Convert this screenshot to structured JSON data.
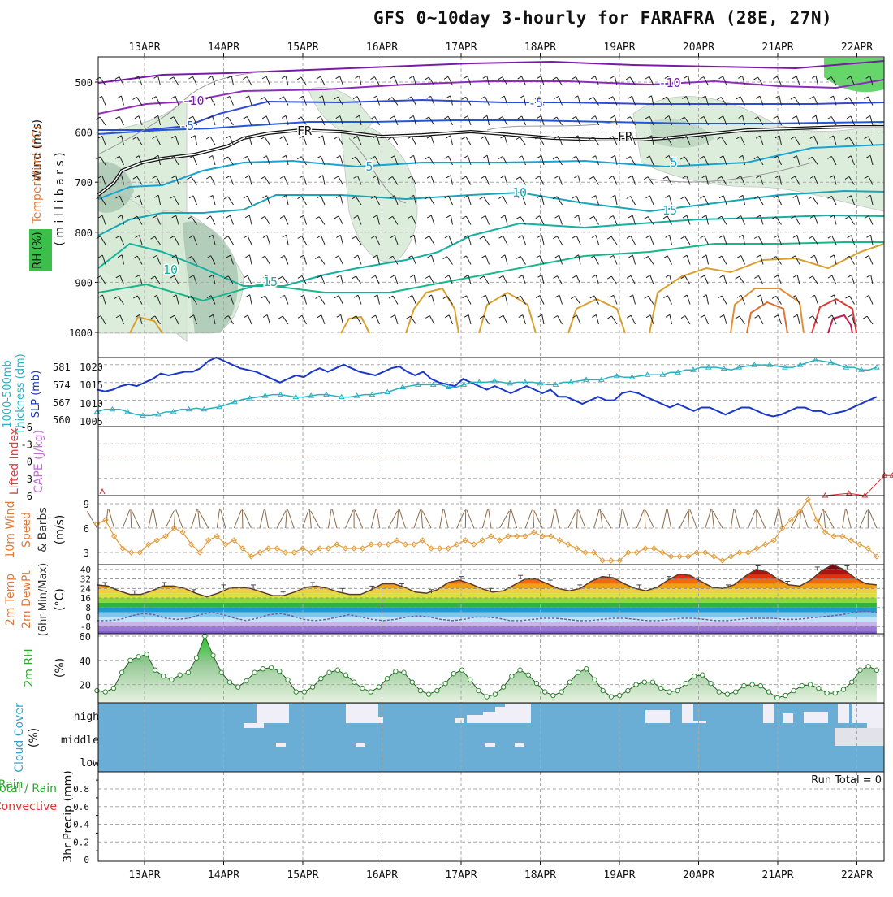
{
  "title": "GFS 0~10day 3-hourly for FARAFRA (28E, 27N)",
  "date_labels": [
    "13APR",
    "14APR",
    "15APR",
    "16APR",
    "17APR",
    "18APR",
    "19APR",
    "20APR",
    "21APR",
    "22APR"
  ],
  "panels": {
    "upper": {
      "ylabels": [
        "RH (%)",
        "Temperature (°C)",
        "Wind (m/s)",
        "( m i l l i b a r s )"
      ],
      "ticks": [
        "500",
        "600",
        "700",
        "800",
        "900",
        "1000"
      ],
      "contour_labels": [
        "-10",
        "-5",
        "-10",
        "-5",
        "FR",
        "FR",
        "5",
        "5",
        "10",
        "15",
        "10",
        "15",
        "-10"
      ]
    },
    "slp": {
      "ylabels": [
        "1000-500mb",
        "Thickness (dm)",
        "SLP (mb)"
      ],
      "ticks_left": [
        "581",
        "574",
        "567",
        "560"
      ],
      "ticks_right": [
        "1020",
        "1015",
        "1010",
        "1005"
      ]
    },
    "li": {
      "ylabels": [
        "Lifted Index",
        "CAPE (J/kg)"
      ],
      "ticks": [
        "-6",
        "-3",
        "0",
        "3",
        "6"
      ]
    },
    "wind10": {
      "ylabels": [
        "10m Wind",
        "Speed",
        "& Barbs"
      ],
      "unit": "(m/s)",
      "ticks": [
        "9",
        "6",
        "3"
      ]
    },
    "temp2m": {
      "ylabels": [
        "2m Temp",
        "2m DewPt",
        "(6hr Min/Max)"
      ],
      "unit": "(°C)",
      "ticks": [
        "40",
        "32",
        "24",
        "16",
        "8",
        "0",
        "-8"
      ]
    },
    "rh2m": {
      "ylabels": [
        "2m RH"
      ],
      "unit": "(%)",
      "ticks": [
        "60",
        "40",
        "20"
      ]
    },
    "cloud": {
      "ylabels": [
        "Cloud Cover"
      ],
      "unit": "(%)",
      "ticks": [
        "high",
        "middle",
        "low"
      ]
    },
    "precip": {
      "ylabels": [
        "Total / Rain",
        "Convective",
        "3hr Precip (mm)"
      ],
      "ticks": [
        "0.8",
        "0.6",
        "0.4",
        "0.2",
        "0"
      ],
      "run_total": "Run Total = 0"
    }
  },
  "colors": {
    "slp": "#1a37c8",
    "thickness": "#2ab0c0",
    "wind": "#e39c3a",
    "barb": "#8a6a4a",
    "rh": "#2e8b2e",
    "cloud_bg": "#6aaed6",
    "cloud_fill": "#f0eef6",
    "li": "#d03030",
    "title": "#111111"
  },
  "chart_data": [
    {
      "type": "line",
      "name": "slp",
      "x_unit": "days since start",
      "ylabel": "SLP (mb)",
      "ylim": [
        1003,
        1023
      ],
      "series": [
        {
          "name": "SLP (mb)",
          "values": [
            1013,
            1012.5,
            1013,
            1014,
            1014.5,
            1014,
            1015,
            1016,
            1017.5,
            1017,
            1017.5,
            1018,
            1018,
            1019,
            1021,
            1022,
            1021,
            1020,
            1019,
            1018.5,
            1018,
            1017,
            1016,
            1015,
            1016,
            1017,
            1016.5,
            1018,
            1019,
            1018,
            1019,
            1020,
            1019,
            1018,
            1017.5,
            1017,
            1018,
            1019,
            1019.5,
            1018,
            1017,
            1018,
            1016,
            1015,
            1014.5,
            1014,
            1016,
            1015,
            1014,
            1013,
            1014,
            1013,
            1012,
            1013,
            1014,
            1013,
            1012,
            1013,
            1011,
            1011,
            1010,
            1009,
            1010,
            1011,
            1010,
            1010,
            1012,
            1012.5,
            1012,
            1011,
            1010,
            1009,
            1008,
            1009,
            1008,
            1007,
            1008,
            1008,
            1007,
            1006,
            1007,
            1008,
            1008,
            1007,
            1006,
            1005.5,
            1006,
            1007,
            1008,
            1008,
            1007,
            1007,
            1006,
            1006.5,
            1007,
            1008,
            1009,
            1010,
            1011
          ]
        }
      ]
    },
    {
      "type": "line",
      "name": "thickness",
      "ylabel": "1000-500mb Thickness (dm)",
      "ylim": [
        556,
        585
      ],
      "series": [
        {
          "name": "Thickness (dm)",
          "values": [
            561,
            562,
            562,
            562,
            561,
            560,
            559.5,
            559.5,
            560,
            561,
            561,
            562,
            562,
            562.5,
            562,
            562.5,
            563,
            564,
            565,
            566,
            566.5,
            567,
            567.5,
            568,
            568,
            567.5,
            567,
            567,
            567.5,
            568,
            568,
            567.5,
            567,
            567,
            567.5,
            568,
            568,
            568.5,
            569,
            570,
            571,
            571.5,
            572,
            572,
            572,
            572,
            571,
            571,
            572,
            573,
            573,
            573,
            573.5,
            573,
            572.5,
            573,
            573,
            573,
            572.5,
            572,
            572,
            573,
            573,
            573.5,
            574,
            574,
            574,
            575,
            575.5,
            575,
            575,
            575.5,
            576,
            576,
            576,
            577,
            577,
            578,
            578,
            579,
            579,
            579,
            578.5,
            578,
            579,
            579.5,
            580,
            580,
            580,
            579.5,
            579,
            579,
            580,
            581,
            582,
            581.5,
            581,
            580,
            579,
            579,
            578,
            578,
            579
          ]
        }
      ]
    },
    {
      "type": "line",
      "name": "lifted_index",
      "ylabel": "Lifted Index",
      "ylim": [
        6,
        -6
      ],
      "series": [
        {
          "name": "Lifted Index",
          "points": [
            [
              8.6,
              6
            ],
            [
              8.9,
              5.6
            ],
            [
              9.1,
              6
            ],
            [
              9.35,
              2.5
            ],
            [
              9.45,
              2.5
            ],
            [
              9.55,
              6
            ],
            [
              9.75,
              5.5
            ],
            [
              9.85,
              6
            ]
          ]
        }
      ]
    },
    {
      "type": "line",
      "name": "wind10m",
      "ylabel": "(m/s)",
      "ylim": [
        1.5,
        10
      ],
      "series": [
        {
          "name": "10m wind speed",
          "values": [
            6.5,
            7,
            5,
            3.5,
            3,
            3,
            4,
            4.5,
            5,
            6,
            5.5,
            4,
            3,
            4.5,
            5,
            4,
            4.5,
            3.5,
            2.5,
            3,
            3.5,
            3.5,
            3,
            3,
            3.5,
            3,
            3.5,
            3.5,
            4,
            3.5,
            3.5,
            3.5,
            4,
            4,
            4,
            4.5,
            4,
            4,
            4.5,
            3.5,
            3.5,
            3.5,
            4,
            4.5,
            4,
            4.5,
            5,
            4.5,
            5,
            5,
            5,
            5.5,
            5,
            5,
            4.5,
            4,
            3.5,
            3,
            3,
            2,
            2,
            2,
            3,
            3,
            3.5,
            3.5,
            3,
            2.5,
            2.5,
            2.5,
            3,
            3,
            2.5,
            2,
            2.5,
            3,
            3,
            3.5,
            4,
            4.5,
            6,
            7,
            8,
            9.5,
            7,
            5.5,
            5,
            5,
            4.5,
            4,
            3.5,
            2.5
          ]
        }
      ]
    },
    {
      "type": "area",
      "name": "temp2m",
      "ylabel": "(°C)",
      "ylim": [
        -14,
        44
      ],
      "series": [
        {
          "name": "2m Temp",
          "values": [
            27,
            26,
            22,
            19,
            19,
            22,
            26,
            26,
            24,
            20,
            17,
            20,
            24,
            25,
            24,
            21,
            18,
            18,
            21,
            25,
            26,
            24,
            21,
            19,
            19,
            23,
            28,
            28,
            25,
            21,
            20,
            23,
            29,
            31,
            28,
            24,
            21,
            22,
            27,
            32,
            32,
            28,
            24,
            22,
            24,
            30,
            34,
            33,
            28,
            24,
            22,
            25,
            31,
            36,
            35,
            30,
            25,
            24,
            27,
            34,
            40,
            38,
            32,
            27,
            26,
            31,
            39,
            44,
            40,
            33,
            28,
            27
          ]
        },
        {
          "name": "2m DewPt",
          "values": [
            -3,
            -3,
            -2,
            1,
            3,
            2,
            -1,
            -2,
            -1,
            2,
            4,
            2,
            -1,
            -3,
            -1,
            2,
            3,
            1,
            -2,
            -3,
            -2,
            0,
            2,
            0,
            -2,
            -3,
            -2,
            0,
            1,
            0,
            -2,
            -3,
            -2,
            0,
            0,
            -1,
            -3,
            -3,
            -2,
            -1,
            -1,
            -2,
            -3,
            -3,
            -2,
            -1,
            -1,
            -2,
            -3,
            -3,
            -2,
            -1,
            -1,
            -2,
            -3,
            -3,
            -2,
            -1,
            -1,
            -1,
            -2,
            -2,
            -1,
            0,
            1,
            2,
            4,
            5,
            4
          ]
        }
      ]
    },
    {
      "type": "area",
      "name": "rh2m",
      "ylabel": "(%)",
      "ylim": [
        5,
        62
      ],
      "series": [
        {
          "name": "2m RH",
          "values": [
            15,
            14,
            17,
            30,
            40,
            43,
            45,
            32,
            27,
            24,
            28,
            30,
            42,
            60,
            44,
            30,
            22,
            18,
            23,
            30,
            33,
            34,
            31,
            24,
            14,
            14,
            18,
            25,
            30,
            32,
            28,
            22,
            17,
            14,
            18,
            25,
            31,
            30,
            22,
            15,
            12,
            15,
            21,
            29,
            32,
            24,
            15,
            10,
            12,
            18,
            27,
            32,
            28,
            21,
            14,
            11,
            14,
            22,
            30,
            33,
            24,
            15,
            10,
            11,
            15,
            20,
            22,
            22,
            17,
            14,
            15,
            21,
            27,
            28,
            21,
            14,
            12,
            14,
            19,
            20,
            19,
            14,
            9,
            11,
            15,
            19,
            20,
            17,
            13,
            13,
            16,
            22,
            32,
            35,
            32
          ]
        }
      ]
    },
    {
      "type": "bar",
      "name": "precip",
      "ylabel": "3hr Precip (mm)",
      "ylim": [
        0,
        1
      ],
      "values": []
    }
  ]
}
